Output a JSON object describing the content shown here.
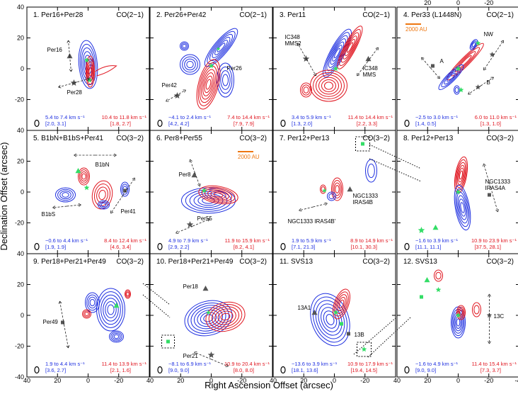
{
  "figure": {
    "xlabel": "Right Ascension Offset (arcsec)",
    "ylabel": "Declination Offset (arcsec)"
  },
  "colors": {
    "blue": "#1e2fe0",
    "red": "#e0141e",
    "green": "#33dd66",
    "gray": "#555555",
    "orange": "#ee7711"
  },
  "chart_data": {
    "type": "contour-panels",
    "xlim": [
      40,
      -40
    ],
    "ylim": [
      -40,
      40
    ],
    "xticks": [
      "40",
      "20",
      "0",
      "-20",
      "-40"
    ],
    "yticks": [
      "-40",
      "-20",
      "0",
      "20",
      "40"
    ],
    "top_xticks": [
      "20",
      "0",
      "-20"
    ],
    "right_yticks": [
      "20",
      "0",
      "-20"
    ],
    "panels": [
      {
        "title": "1. Per16+Per28",
        "line": "CO(2−1)",
        "blue_range": "5.4 to 7.4 km s⁻¹",
        "blue_levels": "[2.0, 3.1]",
        "red_range": "10.4 to 11.8 km s⁻¹",
        "red_levels": "[1.8, 2.7]",
        "labels": [
          "Per16",
          "Per28"
        ]
      },
      {
        "title": "2. Per26+Per42",
        "line": "CO(2−1)",
        "blue_range": "−4.1 to 2.4 km s⁻¹",
        "blue_levels": "[4.2, 4.2]",
        "red_range": "7.4 to 14.4 km s⁻¹",
        "red_levels": "[7.9, 7.9]",
        "labels": [
          "Per26",
          "Per42"
        ]
      },
      {
        "title": "3. Per11",
        "line": "CO(2−1)",
        "blue_range": "3.4 to 5.9 km s⁻¹",
        "blue_levels": "[1.3, 2.0]",
        "red_range": "11.4 to 14.4 km s⁻¹",
        "red_levels": "[2.2, 3.3]",
        "labels": [
          "IC348",
          "MMS2",
          "IC348",
          "MMS"
        ]
      },
      {
        "title": "4. Per33 (L1448N)",
        "line": "CO(2−1)",
        "blue_range": "−2.5 to 3.0 km s⁻¹",
        "blue_levels": "[1.4, 0.5]",
        "red_range": "6.0 to 11.0 km s⁻¹",
        "red_levels": "[1.3, 1.0]",
        "labels": [
          "NW",
          "A",
          "B"
        ],
        "scalebar": "2000 AU"
      },
      {
        "title": "5. B1bN+B1bS+Per41",
        "line": "CO(3−2)",
        "blue_range": "−0.6 to 4.4 km s⁻¹",
        "blue_levels": "[1.9, 1.9]",
        "red_range": "8.4 to 12.4 km s⁻¹",
        "red_levels": "[4.6, 3.4]",
        "labels": [
          "B1bN",
          "B1bS",
          "Per41"
        ]
      },
      {
        "title": "6. Per8+Per55",
        "line": "CO(3−2)",
        "blue_range": "4.9 to 7.9 km s⁻¹",
        "blue_levels": "[2.9, 2.2]",
        "red_range": "11.9 to 15.9 km s⁻¹",
        "red_levels": "[8.2, 4.1]",
        "labels": [
          "Per8",
          "Per55"
        ],
        "scalebar": "2000 AU"
      },
      {
        "title": "7. Per12+Per13",
        "line": "CO(3−2)",
        "blue_range": "1.9 to 5.9 km s⁻¹",
        "blue_levels": "[7.1, 21.3]",
        "red_range": "8.9 to 14.9 km s⁻¹",
        "red_levels": "[10.1, 30.3]",
        "labels": [
          "NGC1333",
          "IRAS4B",
          "NGC1333 IRAS4B'"
        ]
      },
      {
        "title": "8. Per12+Per13",
        "line": "CO(3−2)",
        "blue_range": "−1.6 to 3.9 km s⁻¹",
        "blue_levels": "[11.1, 11.1]",
        "red_range": "10.9 to 23.9 km s⁻¹",
        "red_levels": "[37.5, 28.1]",
        "labels": [
          "NGC1333",
          "IRAS4A"
        ]
      },
      {
        "title": "9. Per18+Per21+Per49",
        "line": "CO(3−2)",
        "blue_range": "1.9 to 4.4 km s⁻¹",
        "blue_levels": "[3.6, 2.7]",
        "red_range": "11.4 to 13.9 km s⁻¹",
        "red_levels": "[2.1, 1.6]",
        "labels": [
          "Per49"
        ]
      },
      {
        "title": "10. Per18+Per21+Per49",
        "line": "CO(3−2)",
        "blue_range": "−8.1 to 6.9 km s⁻¹",
        "blue_levels": "[9.0, 9.0]",
        "red_range": "10.9 to 20.4 km s⁻¹",
        "red_levels": "[8.0, 8.0]",
        "labels": [
          "Per18",
          "Per21"
        ]
      },
      {
        "title": "11. SVS13",
        "line": "CO(3−2)",
        "blue_range": "−13.6 to 3.9 km s⁻¹",
        "blue_levels": "[18.1, 13.6]",
        "red_range": "10.9 to 17.9 km s⁻¹",
        "red_levels": "[19.4, 14.5]",
        "labels": [
          "13A1",
          "13B"
        ]
      },
      {
        "title": "12. SVS13",
        "line": "CO(3−2)",
        "blue_range": "−1.6 to 4.9 km s⁻¹",
        "blue_levels": "[9.0, 9.0]",
        "red_range": "11.4 to 15.4 km s⁻¹",
        "red_levels": "[7.3, 3.7]",
        "labels": [
          "13C"
        ]
      }
    ]
  }
}
